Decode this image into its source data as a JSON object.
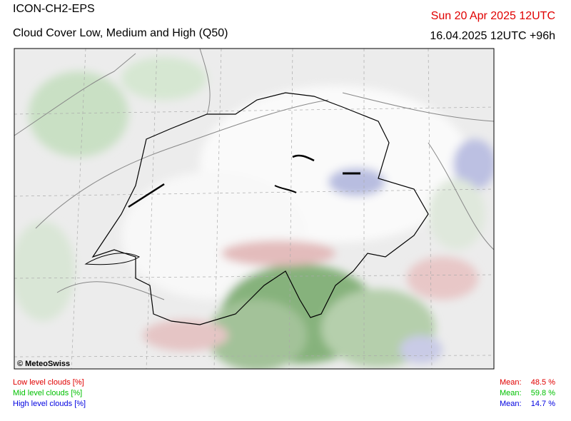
{
  "header": {
    "model": "ICON-CH2-EPS",
    "title": "Cloud Cover Low, Medium and High (Q50)",
    "valid_time": "Sun 20 Apr 2025 12UTC",
    "run": "16.04.2025 12UTC +96h"
  },
  "map": {
    "credit": "© MeteoSwiss"
  },
  "legend": [
    {
      "label": "Low level clouds [%]",
      "mean_label": "Mean:",
      "mean": "48.5 %",
      "color": "#e00000"
    },
    {
      "label": "Mid level clouds [%]",
      "mean_label": "Mean:",
      "mean": "59.8 %",
      "color": "#00c000"
    },
    {
      "label": "High level clouds [%]",
      "mean_label": "Mean:",
      "mean": "14.7 %",
      "color": "#0000e0"
    }
  ]
}
